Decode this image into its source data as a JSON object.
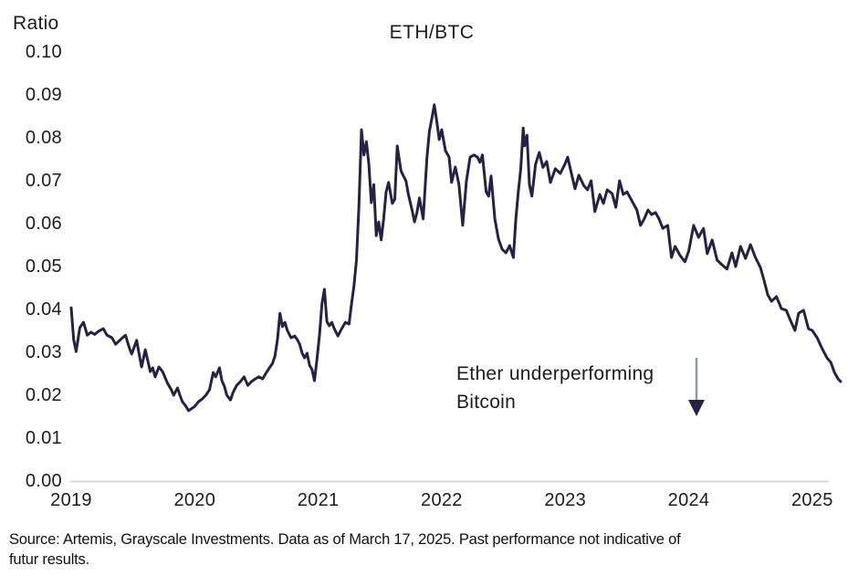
{
  "header": {
    "axis_unit_label": "Ratio",
    "title": "ETH/BTC"
  },
  "annotation": {
    "line1": "Ether underperforming",
    "line2": "Bitcoin",
    "arrow_icon": "down-arrow"
  },
  "source": {
    "line1": "Source: Artemis, Grayscale Investments. Data as of March 17, 2025. Past performance not indicative of",
    "line2": "futur results."
  },
  "colors": {
    "line": "#272244",
    "axis_line": "#d9d9d9",
    "text": "#1c1c1c",
    "arrow_shaft": "#9096ad",
    "arrow_head": "#272244"
  },
  "chart_data": {
    "type": "line",
    "title": "ETH/BTC",
    "ylabel": "Ratio",
    "xlabel": "",
    "legend": "none",
    "grid": false,
    "xlim": [
      2019.0,
      2025.3
    ],
    "ylim": [
      0.0,
      0.1
    ],
    "x_ticks": [
      {
        "label": "2019",
        "value": 2019
      },
      {
        "label": "2020",
        "value": 2020
      },
      {
        "label": "2021",
        "value": 2021
      },
      {
        "label": "2022",
        "value": 2022
      },
      {
        "label": "2023",
        "value": 2023
      },
      {
        "label": "2024",
        "value": 2024
      },
      {
        "label": "2025",
        "value": 2025
      }
    ],
    "y_ticks": [
      {
        "label": "0.00",
        "value": 0.0
      },
      {
        "label": "0.01",
        "value": 0.01
      },
      {
        "label": "0.02",
        "value": 0.02
      },
      {
        "label": "0.03",
        "value": 0.03
      },
      {
        "label": "0.04",
        "value": 0.04
      },
      {
        "label": "0.05",
        "value": 0.05
      },
      {
        "label": "0.06",
        "value": 0.06
      },
      {
        "label": "0.07",
        "value": 0.07
      },
      {
        "label": "0.08",
        "value": 0.08
      },
      {
        "label": "0.09",
        "value": 0.09
      },
      {
        "label": "0.10",
        "value": 0.1
      }
    ],
    "series": [
      {
        "name": "ETH/BTC ratio",
        "points": [
          [
            2019.0,
            0.0404
          ],
          [
            2019.02,
            0.033
          ],
          [
            2019.04,
            0.0302
          ],
          [
            2019.07,
            0.0358
          ],
          [
            2019.1,
            0.037
          ],
          [
            2019.13,
            0.034
          ],
          [
            2019.16,
            0.0347
          ],
          [
            2019.19,
            0.0342
          ],
          [
            2019.22,
            0.0349
          ],
          [
            2019.26,
            0.0355
          ],
          [
            2019.29,
            0.034
          ],
          [
            2019.33,
            0.0334
          ],
          [
            2019.36,
            0.0319
          ],
          [
            2019.4,
            0.033
          ],
          [
            2019.44,
            0.034
          ],
          [
            2019.47,
            0.0311
          ],
          [
            2019.49,
            0.0296
          ],
          [
            2019.53,
            0.0328
          ],
          [
            2019.55,
            0.0296
          ],
          [
            2019.57,
            0.0266
          ],
          [
            2019.6,
            0.0306
          ],
          [
            2019.62,
            0.0281
          ],
          [
            2019.64,
            0.0255
          ],
          [
            2019.66,
            0.0264
          ],
          [
            2019.68,
            0.0243
          ],
          [
            2019.71,
            0.0266
          ],
          [
            2019.74,
            0.0255
          ],
          [
            2019.78,
            0.0228
          ],
          [
            2019.81,
            0.0213
          ],
          [
            2019.83,
            0.02
          ],
          [
            2019.86,
            0.0217
          ],
          [
            2019.88,
            0.02
          ],
          [
            2019.9,
            0.0185
          ],
          [
            2019.93,
            0.0174
          ],
          [
            2019.95,
            0.0164
          ],
          [
            2019.98,
            0.017
          ],
          [
            2020.0,
            0.0174
          ],
          [
            2020.03,
            0.0185
          ],
          [
            2020.06,
            0.0191
          ],
          [
            2020.09,
            0.02
          ],
          [
            2020.12,
            0.0213
          ],
          [
            2020.15,
            0.0253
          ],
          [
            2020.17,
            0.0243
          ],
          [
            2020.2,
            0.0264
          ],
          [
            2020.22,
            0.0234
          ],
          [
            2020.24,
            0.0221
          ],
          [
            2020.26,
            0.02
          ],
          [
            2020.29,
            0.0189
          ],
          [
            2020.31,
            0.0206
          ],
          [
            2020.34,
            0.0223
          ],
          [
            2020.37,
            0.0232
          ],
          [
            2020.4,
            0.0243
          ],
          [
            2020.43,
            0.0223
          ],
          [
            2020.46,
            0.0232
          ],
          [
            2020.49,
            0.0238
          ],
          [
            2020.52,
            0.0243
          ],
          [
            2020.55,
            0.0238
          ],
          [
            2020.58,
            0.0253
          ],
          [
            2020.61,
            0.0266
          ],
          [
            2020.63,
            0.0274
          ],
          [
            2020.65,
            0.0291
          ],
          [
            2020.67,
            0.033
          ],
          [
            2020.69,
            0.0391
          ],
          [
            2020.71,
            0.036
          ],
          [
            2020.73,
            0.037
          ],
          [
            2020.75,
            0.0351
          ],
          [
            2020.78,
            0.0334
          ],
          [
            2020.81,
            0.0338
          ],
          [
            2020.83,
            0.033
          ],
          [
            2020.85,
            0.0319
          ],
          [
            2020.87,
            0.0298
          ],
          [
            2020.89,
            0.0287
          ],
          [
            2020.91,
            0.0298
          ],
          [
            2020.93,
            0.027
          ],
          [
            2020.95,
            0.026
          ],
          [
            2020.97,
            0.0234
          ],
          [
            2020.99,
            0.0283
          ],
          [
            2021.01,
            0.034
          ],
          [
            2021.03,
            0.0413
          ],
          [
            2021.05,
            0.0447
          ],
          [
            2021.07,
            0.0372
          ],
          [
            2021.09,
            0.0362
          ],
          [
            2021.11,
            0.037
          ],
          [
            2021.13,
            0.0355
          ],
          [
            2021.16,
            0.0338
          ],
          [
            2021.19,
            0.0355
          ],
          [
            2021.22,
            0.037
          ],
          [
            2021.25,
            0.0366
          ],
          [
            2021.27,
            0.0413
          ],
          [
            2021.29,
            0.0455
          ],
          [
            2021.31,
            0.0515
          ],
          [
            2021.33,
            0.064
          ],
          [
            2021.35,
            0.0819
          ],
          [
            2021.37,
            0.076
          ],
          [
            2021.39,
            0.0791
          ],
          [
            2021.41,
            0.0738
          ],
          [
            2021.43,
            0.0649
          ],
          [
            2021.45,
            0.0691
          ],
          [
            2021.47,
            0.0572
          ],
          [
            2021.49,
            0.0604
          ],
          [
            2021.51,
            0.0562
          ],
          [
            2021.53,
            0.0611
          ],
          [
            2021.55,
            0.0674
          ],
          [
            2021.57,
            0.0696
          ],
          [
            2021.6,
            0.0647
          ],
          [
            2021.62,
            0.0657
          ],
          [
            2021.64,
            0.0781
          ],
          [
            2021.67,
            0.0723
          ],
          [
            2021.69,
            0.0711
          ],
          [
            2021.71,
            0.07
          ],
          [
            2021.73,
            0.0668
          ],
          [
            2021.76,
            0.0632
          ],
          [
            2021.78,
            0.0604
          ],
          [
            2021.8,
            0.0626
          ],
          [
            2021.82,
            0.066
          ],
          [
            2021.85,
            0.0611
          ],
          [
            2021.88,
            0.0753
          ],
          [
            2021.9,
            0.0815
          ],
          [
            2021.92,
            0.0845
          ],
          [
            2021.94,
            0.0877
          ],
          [
            2021.96,
            0.0838
          ],
          [
            2021.98,
            0.0796
          ],
          [
            2022.0,
            0.0819
          ],
          [
            2022.03,
            0.077
          ],
          [
            2022.06,
            0.0755
          ],
          [
            2022.08,
            0.0696
          ],
          [
            2022.11,
            0.0732
          ],
          [
            2022.14,
            0.0691
          ],
          [
            2022.17,
            0.0596
          ],
          [
            2022.2,
            0.07
          ],
          [
            2022.23,
            0.0755
          ],
          [
            2022.26,
            0.076
          ],
          [
            2022.29,
            0.0755
          ],
          [
            2022.31,
            0.0743
          ],
          [
            2022.33,
            0.076
          ],
          [
            2022.36,
            0.0674
          ],
          [
            2022.38,
            0.0664
          ],
          [
            2022.4,
            0.0711
          ],
          [
            2022.43,
            0.0611
          ],
          [
            2022.46,
            0.0564
          ],
          [
            2022.49,
            0.054
          ],
          [
            2022.52,
            0.0532
          ],
          [
            2022.55,
            0.0549
          ],
          [
            2022.58,
            0.0521
          ],
          [
            2022.6,
            0.061
          ],
          [
            2022.62,
            0.0674
          ],
          [
            2022.64,
            0.0728
          ],
          [
            2022.66,
            0.0823
          ],
          [
            2022.67,
            0.0781
          ],
          [
            2022.69,
            0.0806
          ],
          [
            2022.71,
            0.0691
          ],
          [
            2022.73,
            0.0664
          ],
          [
            2022.76,
            0.0738
          ],
          [
            2022.79,
            0.0766
          ],
          [
            2022.82,
            0.0731
          ],
          [
            2022.85,
            0.0745
          ],
          [
            2022.88,
            0.0696
          ],
          [
            2022.92,
            0.0728
          ],
          [
            2022.96,
            0.0717
          ],
          [
            2023.0,
            0.074
          ],
          [
            2023.02,
            0.0755
          ],
          [
            2023.05,
            0.0717
          ],
          [
            2023.08,
            0.0681
          ],
          [
            2023.11,
            0.0713
          ],
          [
            2023.15,
            0.0689
          ],
          [
            2023.18,
            0.0679
          ],
          [
            2023.21,
            0.07
          ],
          [
            2023.24,
            0.0628
          ],
          [
            2023.28,
            0.0668
          ],
          [
            2023.31,
            0.0647
          ],
          [
            2023.34,
            0.0679
          ],
          [
            2023.38,
            0.067
          ],
          [
            2023.41,
            0.0638
          ],
          [
            2023.44,
            0.07
          ],
          [
            2023.47,
            0.0668
          ],
          [
            2023.5,
            0.0674
          ],
          [
            2023.54,
            0.0653
          ],
          [
            2023.58,
            0.0632
          ],
          [
            2023.61,
            0.0596
          ],
          [
            2023.64,
            0.0611
          ],
          [
            2023.67,
            0.0632
          ],
          [
            2023.7,
            0.0621
          ],
          [
            2023.73,
            0.0626
          ],
          [
            2023.76,
            0.0611
          ],
          [
            2023.79,
            0.0589
          ],
          [
            2023.83,
            0.0596
          ],
          [
            2023.86,
            0.0521
          ],
          [
            2023.89,
            0.0547
          ],
          [
            2023.93,
            0.0526
          ],
          [
            2023.97,
            0.0511
          ],
          [
            2024.0,
            0.0536
          ],
          [
            2024.04,
            0.0596
          ],
          [
            2024.08,
            0.0568
          ],
          [
            2024.12,
            0.0589
          ],
          [
            2024.15,
            0.053
          ],
          [
            2024.19,
            0.0562
          ],
          [
            2024.23,
            0.0515
          ],
          [
            2024.27,
            0.0504
          ],
          [
            2024.31,
            0.0494
          ],
          [
            2024.35,
            0.0532
          ],
          [
            2024.38,
            0.05
          ],
          [
            2024.42,
            0.0547
          ],
          [
            2024.46,
            0.0519
          ],
          [
            2024.5,
            0.0551
          ],
          [
            2024.54,
            0.0521
          ],
          [
            2024.58,
            0.0498
          ],
          [
            2024.61,
            0.0468
          ],
          [
            2024.64,
            0.0434
          ],
          [
            2024.67,
            0.0419
          ],
          [
            2024.71,
            0.043
          ],
          [
            2024.75,
            0.0402
          ],
          [
            2024.79,
            0.0398
          ],
          [
            2024.82,
            0.0377
          ],
          [
            2024.86,
            0.0351
          ],
          [
            2024.89,
            0.0391
          ],
          [
            2024.93,
            0.0398
          ],
          [
            2024.97,
            0.0355
          ],
          [
            2025.0,
            0.0351
          ],
          [
            2025.04,
            0.0334
          ],
          [
            2025.08,
            0.0309
          ],
          [
            2025.12,
            0.0287
          ],
          [
            2025.15,
            0.0277
          ],
          [
            2025.18,
            0.0253
          ],
          [
            2025.21,
            0.0238
          ],
          [
            2025.23,
            0.0232
          ]
        ]
      }
    ],
    "annotations": [
      {
        "text": "Ether underperforming Bitcoin",
        "arrow": "down",
        "arrow_x": 2024.06,
        "arrow_y_top": 0.0287,
        "arrow_y_bottom": 0.0155
      }
    ]
  }
}
